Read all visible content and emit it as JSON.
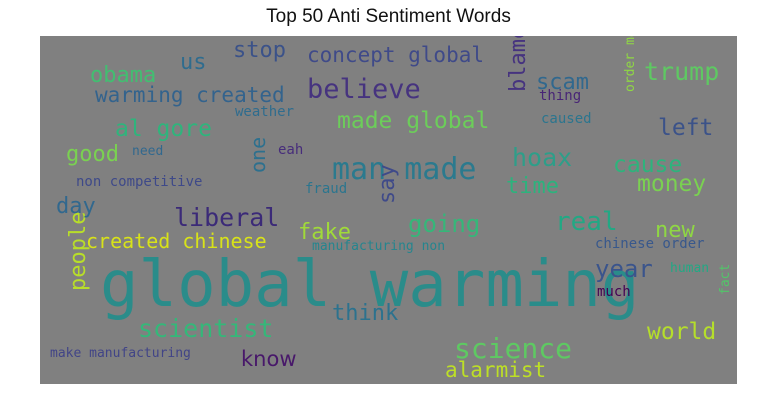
{
  "title": "Top 50 Anti Sentiment Words",
  "words": [
    {
      "text": "global warming",
      "color": "#2a8c8a",
      "weight": 1.0
    },
    {
      "text": "man made",
      "color": "#2b7a8e",
      "weight": 0.55
    },
    {
      "text": "believe",
      "color": "#46337f",
      "weight": 0.45
    },
    {
      "text": "science",
      "color": "#5ec962",
      "weight": 0.42
    },
    {
      "text": "trump",
      "color": "#5ec962",
      "weight": 0.4
    },
    {
      "text": "scientist",
      "color": "#35b779",
      "weight": 0.4
    },
    {
      "text": "liberal",
      "color": "#3b2a78",
      "weight": 0.38
    },
    {
      "text": "hoax",
      "color": "#2e9e89",
      "weight": 0.38
    },
    {
      "text": "created chinese",
      "color": "#d8e219",
      "weight": 0.34
    },
    {
      "text": "made global",
      "color": "#6ccd5a",
      "weight": 0.34
    },
    {
      "text": "concept global",
      "color": "#3f4a89",
      "weight": 0.34
    },
    {
      "text": "al gore",
      "color": "#2fb47c",
      "weight": 0.34
    },
    {
      "text": "warming created",
      "color": "#33638d",
      "weight": 0.32
    },
    {
      "text": "real",
      "color": "#22a884",
      "weight": 0.35
    },
    {
      "text": "cause",
      "color": "#2eb37c",
      "weight": 0.33
    },
    {
      "text": "money",
      "color": "#7ad151",
      "weight": 0.33
    },
    {
      "text": "world",
      "color": "#b5de2b",
      "weight": 0.33
    },
    {
      "text": "year",
      "color": "#3a548c",
      "weight": 0.33
    },
    {
      "text": "people",
      "color": "#b8de29",
      "weight": 0.32
    },
    {
      "text": "think",
      "color": "#2c728e",
      "weight": 0.3
    },
    {
      "text": "left",
      "color": "#3b5289",
      "weight": 0.3
    },
    {
      "text": "going",
      "color": "#35b779",
      "weight": 0.3
    },
    {
      "text": "new",
      "color": "#8fd744",
      "weight": 0.3
    },
    {
      "text": "know",
      "color": "#48186a",
      "weight": 0.3
    },
    {
      "text": "obama",
      "color": "#42be71",
      "weight": 0.3
    },
    {
      "text": "fake",
      "color": "#a0da39",
      "weight": 0.3
    },
    {
      "text": "scam",
      "color": "#31688e",
      "weight": 0.3
    },
    {
      "text": "say",
      "color": "#3f4a89",
      "weight": 0.3
    },
    {
      "text": "blame",
      "color": "#46337f",
      "weight": 0.3
    },
    {
      "text": "stop",
      "color": "#3b5289",
      "weight": 0.3
    },
    {
      "text": "us",
      "color": "#2f6c8e",
      "weight": 0.3
    },
    {
      "text": "good",
      "color": "#7ad151",
      "weight": 0.28
    },
    {
      "text": "day",
      "color": "#31688e",
      "weight": 0.28
    },
    {
      "text": "time",
      "color": "#2db27d",
      "weight": 0.28
    },
    {
      "text": "alarmist",
      "color": "#bddf26",
      "weight": 0.28
    },
    {
      "text": "one",
      "color": "#2d708e",
      "weight": 0.28
    },
    {
      "text": "non competitive",
      "color": "#3e4989",
      "weight": 0.18
    },
    {
      "text": "make manufacturing",
      "color": "#414487",
      "weight": 0.17
    },
    {
      "text": "manufacturing non",
      "color": "#25858e",
      "weight": 0.16
    },
    {
      "text": "chinese order",
      "color": "#38588c",
      "weight": 0.16
    },
    {
      "text": "weather",
      "color": "#2f6c8e",
      "weight": 0.17
    },
    {
      "text": "caused",
      "color": "#2b758e",
      "weight": 0.16
    },
    {
      "text": "thing",
      "color": "#482576",
      "weight": 0.16
    },
    {
      "text": "fraud",
      "color": "#2b758e",
      "weight": 0.16
    },
    {
      "text": "need",
      "color": "#31688e",
      "weight": 0.16
    },
    {
      "text": "eah",
      "color": "#472d7b",
      "weight": 0.16
    },
    {
      "text": "much",
      "color": "#440154",
      "weight": 0.16
    },
    {
      "text": "human",
      "color": "#22a884",
      "weight": 0.15
    },
    {
      "text": "fact",
      "color": "#52c569",
      "weight": 0.15
    },
    {
      "text": "order make",
      "color": "#8fd744",
      "weight": 0.15
    }
  ]
}
